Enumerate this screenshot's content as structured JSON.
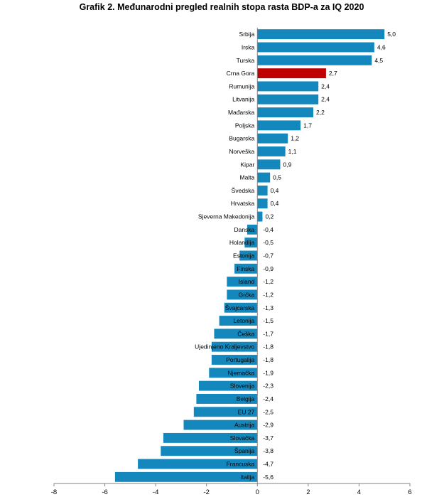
{
  "chart_data": {
    "type": "bar",
    "orientation": "horizontal",
    "title": "Grafik 2. Međunarodni pregled realnih stopa rasta BDP-a za IQ 2020",
    "categories": [
      "Srbija",
      "Irska",
      "Turska",
      "Crna Gora",
      "Rumunija",
      "Litvanija",
      "Mađarska",
      "Poljska",
      "Bugarska",
      "Norveška",
      "Kipar",
      "Malta",
      "Švedska",
      "Hrvatska",
      "Sjeverna Makedonija",
      "Danska",
      "Holandija",
      "Estonija",
      "Finska",
      "Island",
      "Grčka",
      "Švajcarska",
      "Letonija",
      "Češka",
      "Ujedinjeno Kraljevstvo",
      "Portugalija",
      "Njemačka",
      "Slovenija",
      "Belgija",
      "EU 27",
      "Austrija",
      "Slovačka",
      "Španija",
      "Francuska",
      "Italija"
    ],
    "values": [
      5.0,
      4.6,
      4.5,
      2.7,
      2.4,
      2.4,
      2.2,
      1.7,
      1.2,
      1.1,
      0.9,
      0.5,
      0.4,
      0.4,
      0.2,
      -0.4,
      -0.5,
      -0.7,
      -0.9,
      -1.2,
      -1.2,
      -1.3,
      -1.5,
      -1.7,
      -1.8,
      -1.8,
      -1.9,
      -2.3,
      -2.4,
      -2.5,
      -2.9,
      -3.7,
      -3.8,
      -4.7,
      -5.6
    ],
    "value_labels": [
      "5,0",
      "4,6",
      "4,5",
      "2,7",
      "2,4",
      "2,4",
      "2,2",
      "1,7",
      "1,2",
      "1,1",
      "0,9",
      "0,5",
      "0,4",
      "0,4",
      "0,2",
      "-0,4",
      "-0,5",
      "-0,7",
      "-0,9",
      "-1,2",
      "-1,2",
      "-1,3",
      "-1,5",
      "-1,7",
      "-1,8",
      "-1,8",
      "-1,9",
      "-2,3",
      "-2,4",
      "-2,5",
      "-2,9",
      "-3,7",
      "-3,8",
      "-4,7",
      "-5,6"
    ],
    "highlight": "Crna Gora",
    "colors": {
      "bar": "#1488bd",
      "highlight": "#c00000",
      "axis": "#808080"
    },
    "xlim": [
      -8,
      6
    ],
    "xticks": [
      -8,
      -6,
      -4,
      -2,
      0,
      2,
      4,
      6
    ],
    "grid": false,
    "xlabel": "",
    "ylabel": ""
  }
}
